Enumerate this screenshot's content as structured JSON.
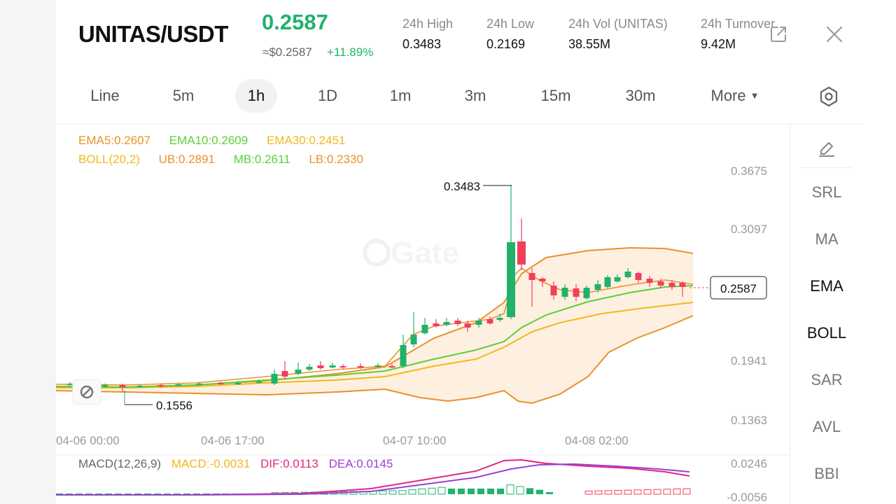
{
  "header": {
    "pair": "UNITAS/USDT",
    "price": "0.2587",
    "price_usd": "≈$0.2587",
    "change": "+11.89%",
    "stats": [
      {
        "label": "24h   High",
        "value": "0.3483"
      },
      {
        "label": "24h   Low",
        "value": "0.2169"
      },
      {
        "label": "24h   Vol (UNITAS)",
        "value": "38.55M"
      },
      {
        "label": "24h   Turnover",
        "value": "9.42M"
      }
    ],
    "icons": {
      "share": "share-icon",
      "close": "close-icon"
    }
  },
  "intervals": {
    "items": [
      "Line",
      "5m",
      "1h",
      "1D",
      "1m",
      "3m",
      "15m",
      "30m"
    ],
    "active": "1h",
    "more_label": "More"
  },
  "chart": {
    "watermark": "Gate",
    "legend_row1": [
      "EMA5:0.2607",
      "EMA10:0.2609",
      "EMA30:0.2451"
    ],
    "legend_row2": [
      "BOLL(20,2)",
      "UB:0.2891",
      "MB:0.2611",
      "LB:0.2330"
    ],
    "price_ticks": [
      "0.3675",
      "0.3097",
      "0.1941",
      "0.1363"
    ],
    "time_ticks": [
      "04-06 00:00",
      "04-06 17:00",
      "04-07 10:00",
      "04-08 02:00"
    ],
    "high_marker": "0.3483",
    "low_marker": "0.1556",
    "last_price_tag": "0.2587",
    "macd_legend": [
      "MACD(12,26,9)",
      "MACD:-0.0031",
      "DIF:0.0113",
      "DEA:0.0145"
    ],
    "macd_ticks": [
      "0.0246",
      "-0.0056"
    ],
    "colors": {
      "up": "#20b26c",
      "down": "#f0405b",
      "ema5": "#e8922a",
      "ema10": "#5ccf3a",
      "ema30": "#f2b71e",
      "boll": "#e8922a",
      "dif": "#e0287f",
      "dea": "#9b3fd6"
    }
  },
  "side_tools": {
    "pen_icon": "pencil-icon",
    "items": [
      "SRL",
      "MA",
      "EMA",
      "BOLL",
      "SAR",
      "AVL",
      "BBI"
    ],
    "active": [
      "EMA",
      "BOLL"
    ]
  }
}
